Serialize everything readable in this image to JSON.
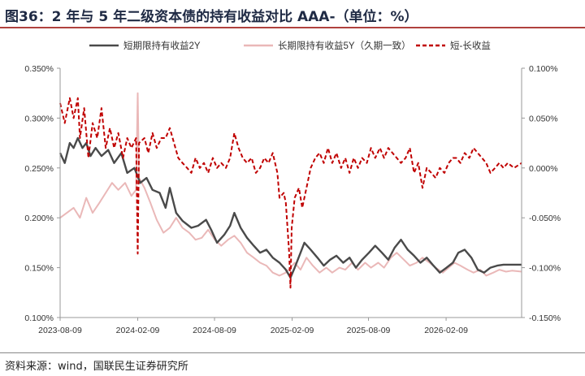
{
  "page": {
    "title": "图36：2 年与 5 年二级资本债的持有收益对比 AAA-（单位：%）",
    "source": "资料来源：wind，国联民生证券研究所"
  },
  "colors": {
    "series_2y": "#4a4a4a",
    "series_5y": "#eab8b8",
    "series_spread": "#c00000",
    "axis": "#999999",
    "title_rule": "#b0413e"
  },
  "chart_data": {
    "type": "line",
    "title": "",
    "legend_position": "top",
    "grid": false,
    "x_type": "date",
    "x_range": [
      "2023-08-09",
      "2026-08-07"
    ],
    "x_ticks": [
      "2023-08-09",
      "2024-02-09",
      "2024-08-09",
      "2025-02-09",
      "2025-08-09",
      "2026-02-09"
    ],
    "y_left": {
      "range": [
        0.1,
        0.35
      ],
      "ticks": [
        "0.100%",
        "0.150%",
        "0.200%",
        "0.250%",
        "0.300%",
        "0.350%"
      ],
      "tick_values": [
        0.1,
        0.15,
        0.2,
        0.25,
        0.3,
        0.35
      ]
    },
    "y_right": {
      "range": [
        -0.15,
        0.1
      ],
      "ticks": [
        "-0.150%",
        "-0.100%",
        "-0.050%",
        "0.000%",
        "0.050%",
        "0.100%"
      ],
      "tick_values": [
        -0.15,
        -0.1,
        -0.05,
        0.0,
        0.05,
        0.1
      ]
    },
    "series": [
      {
        "name": "短期限持有收益2Y",
        "axis": "left",
        "style": "solid",
        "points": [
          [
            "2023-08-09",
            0.265
          ],
          [
            "2023-08-20",
            0.255
          ],
          [
            "2023-09-01",
            0.275
          ],
          [
            "2023-09-10",
            0.27
          ],
          [
            "2023-09-20",
            0.28
          ],
          [
            "2023-10-01",
            0.27
          ],
          [
            "2023-10-10",
            0.275
          ],
          [
            "2023-10-20",
            0.262
          ],
          [
            "2023-11-01",
            0.27
          ],
          [
            "2023-11-15",
            0.262
          ],
          [
            "2023-12-01",
            0.268
          ],
          [
            "2023-12-15",
            0.255
          ],
          [
            "2024-01-01",
            0.265
          ],
          [
            "2024-01-15",
            0.245
          ],
          [
            "2024-02-01",
            0.25
          ],
          [
            "2024-02-15",
            0.235
          ],
          [
            "2024-03-01",
            0.24
          ],
          [
            "2024-03-15",
            0.228
          ],
          [
            "2024-04-01",
            0.225
          ],
          [
            "2024-04-15",
            0.21
          ],
          [
            "2024-04-25",
            0.23
          ],
          [
            "2024-05-10",
            0.205
          ],
          [
            "2024-05-25",
            0.197
          ],
          [
            "2024-06-15",
            0.19
          ],
          [
            "2024-07-01",
            0.192
          ],
          [
            "2024-07-20",
            0.198
          ],
          [
            "2024-08-01",
            0.188
          ],
          [
            "2024-08-15",
            0.175
          ],
          [
            "2024-09-01",
            0.183
          ],
          [
            "2024-09-15",
            0.192
          ],
          [
            "2024-09-25",
            0.205
          ],
          [
            "2024-10-10",
            0.19
          ],
          [
            "2024-10-25",
            0.18
          ],
          [
            "2024-11-10",
            0.172
          ],
          [
            "2024-11-25",
            0.165
          ],
          [
            "2024-12-10",
            0.168
          ],
          [
            "2024-12-25",
            0.16
          ],
          [
            "2025-01-10",
            0.155
          ],
          [
            "2025-01-25",
            0.148
          ],
          [
            "2025-02-05",
            0.14
          ],
          [
            "2025-02-15",
            0.15
          ],
          [
            "2025-03-01",
            0.165
          ],
          [
            "2025-03-10",
            0.175
          ],
          [
            "2025-03-25",
            0.168
          ],
          [
            "2025-04-10",
            0.16
          ],
          [
            "2025-04-25",
            0.152
          ],
          [
            "2025-05-10",
            0.158
          ],
          [
            "2025-05-25",
            0.162
          ],
          [
            "2025-06-10",
            0.155
          ],
          [
            "2025-06-25",
            0.16
          ],
          [
            "2025-07-10",
            0.15
          ],
          [
            "2025-07-25",
            0.158
          ],
          [
            "2025-08-10",
            0.165
          ],
          [
            "2025-08-25",
            0.172
          ],
          [
            "2025-09-10",
            0.165
          ],
          [
            "2025-09-25",
            0.158
          ],
          [
            "2025-10-10",
            0.17
          ],
          [
            "2025-10-25",
            0.178
          ],
          [
            "2025-11-10",
            0.168
          ],
          [
            "2025-11-25",
            0.162
          ],
          [
            "2025-12-10",
            0.155
          ],
          [
            "2025-12-25",
            0.16
          ],
          [
            "2026-01-10",
            0.152
          ],
          [
            "2026-01-25",
            0.145
          ],
          [
            "2026-02-10",
            0.15
          ],
          [
            "2026-02-25",
            0.155
          ],
          [
            "2026-03-10",
            0.165
          ],
          [
            "2026-03-25",
            0.168
          ],
          [
            "2026-04-10",
            0.16
          ],
          [
            "2026-04-25",
            0.148
          ],
          [
            "2026-05-10",
            0.145
          ],
          [
            "2026-05-25",
            0.15
          ],
          [
            "2026-06-10",
            0.152
          ],
          [
            "2026-06-25",
            0.153
          ],
          [
            "2026-07-10",
            0.153
          ],
          [
            "2026-08-07",
            0.153
          ]
        ]
      },
      {
        "name": "长期限持有收益5Y（久期一致）",
        "axis": "left",
        "style": "solid",
        "points": [
          [
            "2023-08-09",
            0.2
          ],
          [
            "2023-08-25",
            0.205
          ],
          [
            "2023-09-10",
            0.21
          ],
          [
            "2023-09-25",
            0.2
          ],
          [
            "2023-10-10",
            0.22
          ],
          [
            "2023-10-25",
            0.205
          ],
          [
            "2023-11-10",
            0.215
          ],
          [
            "2023-11-25",
            0.225
          ],
          [
            "2023-12-10",
            0.235
          ],
          [
            "2023-12-25",
            0.228
          ],
          [
            "2024-01-10",
            0.235
          ],
          [
            "2024-01-25",
            0.222
          ],
          [
            "2024-02-05",
            0.228
          ],
          [
            "2024-02-09",
            0.325
          ],
          [
            "2024-02-12",
            0.24
          ],
          [
            "2024-02-25",
            0.23
          ],
          [
            "2024-03-10",
            0.215
          ],
          [
            "2024-03-25",
            0.198
          ],
          [
            "2024-04-10",
            0.185
          ],
          [
            "2024-04-25",
            0.19
          ],
          [
            "2024-05-10",
            0.2
          ],
          [
            "2024-05-25",
            0.19
          ],
          [
            "2024-06-10",
            0.185
          ],
          [
            "2024-06-25",
            0.178
          ],
          [
            "2024-07-10",
            0.18
          ],
          [
            "2024-07-25",
            0.188
          ],
          [
            "2024-08-10",
            0.178
          ],
          [
            "2024-08-25",
            0.172
          ],
          [
            "2024-09-10",
            0.178
          ],
          [
            "2024-09-25",
            0.182
          ],
          [
            "2024-10-10",
            0.175
          ],
          [
            "2024-10-25",
            0.165
          ],
          [
            "2024-11-10",
            0.16
          ],
          [
            "2024-11-25",
            0.155
          ],
          [
            "2024-12-10",
            0.152
          ],
          [
            "2024-12-25",
            0.145
          ],
          [
            "2025-01-10",
            0.142
          ],
          [
            "2025-01-25",
            0.145
          ],
          [
            "2025-02-05",
            0.15
          ],
          [
            "2025-02-15",
            0.155
          ],
          [
            "2025-03-01",
            0.148
          ],
          [
            "2025-03-15",
            0.16
          ],
          [
            "2025-03-30",
            0.152
          ],
          [
            "2025-04-15",
            0.145
          ],
          [
            "2025-05-01",
            0.15
          ],
          [
            "2025-05-15",
            0.145
          ],
          [
            "2025-06-01",
            0.15
          ],
          [
            "2025-06-15",
            0.148
          ],
          [
            "2025-07-01",
            0.155
          ],
          [
            "2025-07-15",
            0.148
          ],
          [
            "2025-08-01",
            0.155
          ],
          [
            "2025-08-15",
            0.15
          ],
          [
            "2025-09-01",
            0.155
          ],
          [
            "2025-09-15",
            0.15
          ],
          [
            "2025-10-01",
            0.16
          ],
          [
            "2025-10-15",
            0.165
          ],
          [
            "2025-11-01",
            0.158
          ],
          [
            "2025-11-15",
            0.152
          ],
          [
            "2025-12-01",
            0.155
          ],
          [
            "2025-12-15",
            0.16
          ],
          [
            "2026-01-01",
            0.155
          ],
          [
            "2026-01-15",
            0.15
          ],
          [
            "2026-02-01",
            0.145
          ],
          [
            "2026-02-15",
            0.15
          ],
          [
            "2026-03-01",
            0.155
          ],
          [
            "2026-03-15",
            0.152
          ],
          [
            "2026-04-01",
            0.148
          ],
          [
            "2026-04-15",
            0.145
          ],
          [
            "2026-05-01",
            0.148
          ],
          [
            "2026-05-15",
            0.142
          ],
          [
            "2026-06-01",
            0.145
          ],
          [
            "2026-06-15",
            0.148
          ],
          [
            "2026-07-01",
            0.146
          ],
          [
            "2026-07-15",
            0.147
          ],
          [
            "2026-08-07",
            0.146
          ]
        ]
      },
      {
        "name": "短-长收益",
        "axis": "right",
        "style": "dashed",
        "points": [
          [
            "2023-08-09",
            0.065
          ],
          [
            "2023-08-20",
            0.045
          ],
          [
            "2023-09-01",
            0.07
          ],
          [
            "2023-09-10",
            0.05
          ],
          [
            "2023-09-20",
            0.07
          ],
          [
            "2023-09-25",
            0.03
          ],
          [
            "2023-10-05",
            0.06
          ],
          [
            "2023-10-15",
            0.01
          ],
          [
            "2023-10-25",
            0.045
          ],
          [
            "2023-11-05",
            0.03
          ],
          [
            "2023-11-15",
            0.06
          ],
          [
            "2023-11-25",
            0.02
          ],
          [
            "2023-12-05",
            0.04
          ],
          [
            "2023-12-15",
            0.02
          ],
          [
            "2023-12-25",
            0.035
          ],
          [
            "2024-01-05",
            0.01
          ],
          [
            "2024-01-15",
            0.03
          ],
          [
            "2024-01-25",
            0.02
          ],
          [
            "2024-02-05",
            0.03
          ],
          [
            "2024-02-09",
            -0.086
          ],
          [
            "2024-02-12",
            0.025
          ],
          [
            "2024-02-25",
            0.03
          ],
          [
            "2024-03-05",
            0.015
          ],
          [
            "2024-03-15",
            0.035
          ],
          [
            "2024-03-25",
            0.02
          ],
          [
            "2024-04-05",
            0.03
          ],
          [
            "2024-04-15",
            0.03
          ],
          [
            "2024-04-25",
            0.04
          ],
          [
            "2024-05-05",
            0.025
          ],
          [
            "2024-05-15",
            0.01
          ],
          [
            "2024-05-25",
            0.005
          ],
          [
            "2024-06-05",
            0.0
          ],
          [
            "2024-06-15",
            -0.005
          ],
          [
            "2024-06-25",
            0.01
          ],
          [
            "2024-07-05",
            0.0
          ],
          [
            "2024-07-15",
            0.005
          ],
          [
            "2024-07-25",
            -0.005
          ],
          [
            "2024-08-05",
            0.01
          ],
          [
            "2024-08-15",
            0.0
          ],
          [
            "2024-08-25",
            0.005
          ],
          [
            "2024-09-05",
            0.0
          ],
          [
            "2024-09-15",
            0.01
          ],
          [
            "2024-09-25",
            0.035
          ],
          [
            "2024-10-05",
            0.02
          ],
          [
            "2024-10-15",
            0.01
          ],
          [
            "2024-10-25",
            0.005
          ],
          [
            "2024-11-05",
            0.01
          ],
          [
            "2024-11-15",
            -0.005
          ],
          [
            "2024-11-25",
            0.0
          ],
          [
            "2024-12-05",
            0.01
          ],
          [
            "2024-12-15",
            0.005
          ],
          [
            "2024-12-25",
            0.015
          ],
          [
            "2025-01-05",
            -0.005
          ],
          [
            "2025-01-10",
            -0.03
          ],
          [
            "2025-01-20",
            -0.025
          ],
          [
            "2025-01-25",
            -0.035
          ],
          [
            "2025-02-02",
            -0.085
          ],
          [
            "2025-02-05",
            -0.12
          ],
          [
            "2025-02-08",
            -0.06
          ],
          [
            "2025-02-15",
            -0.03
          ],
          [
            "2025-02-25",
            -0.02
          ],
          [
            "2025-03-05",
            -0.04
          ],
          [
            "2025-03-15",
            -0.02
          ],
          [
            "2025-03-25",
            0.0
          ],
          [
            "2025-04-05",
            0.01
          ],
          [
            "2025-04-15",
            0.015
          ],
          [
            "2025-04-25",
            0.005
          ],
          [
            "2025-05-05",
            0.02
          ],
          [
            "2025-05-15",
            0.005
          ],
          [
            "2025-05-25",
            0.015
          ],
          [
            "2025-06-05",
            0.0
          ],
          [
            "2025-06-15",
            0.01
          ],
          [
            "2025-06-25",
            -0.005
          ],
          [
            "2025-07-05",
            0.01
          ],
          [
            "2025-07-15",
            0.0
          ],
          [
            "2025-07-25",
            0.01
          ],
          [
            "2025-08-05",
            0.005
          ],
          [
            "2025-08-15",
            0.02
          ],
          [
            "2025-08-25",
            0.01
          ],
          [
            "2025-09-05",
            0.02
          ],
          [
            "2025-09-15",
            0.01
          ],
          [
            "2025-09-25",
            0.02
          ],
          [
            "2025-10-05",
            0.015
          ],
          [
            "2025-10-15",
            0.01
          ],
          [
            "2025-10-25",
            0.005
          ],
          [
            "2025-11-05",
            0.01
          ],
          [
            "2025-11-15",
            0.02
          ],
          [
            "2025-11-25",
            -0.005
          ],
          [
            "2025-12-05",
            0.005
          ],
          [
            "2025-12-15",
            -0.02
          ],
          [
            "2025-12-25",
            0.0
          ],
          [
            "2026-01-05",
            -0.005
          ],
          [
            "2026-01-15",
            -0.01
          ],
          [
            "2026-01-25",
            0.0
          ],
          [
            "2026-02-05",
            -0.005
          ],
          [
            "2026-02-15",
            0.005
          ],
          [
            "2026-02-25",
            0.01
          ],
          [
            "2026-03-05",
            0.01
          ],
          [
            "2026-03-15",
            0.005
          ],
          [
            "2026-03-25",
            0.015
          ],
          [
            "2026-04-05",
            0.01
          ],
          [
            "2026-04-15",
            0.02
          ],
          [
            "2026-04-25",
            0.015
          ],
          [
            "2026-05-05",
            0.01
          ],
          [
            "2026-05-15",
            0.005
          ],
          [
            "2026-05-25",
            -0.005
          ],
          [
            "2026-06-05",
            0.0
          ],
          [
            "2026-06-15",
            0.005
          ],
          [
            "2026-06-25",
            0.0
          ],
          [
            "2026-07-05",
            0.005
          ],
          [
            "2026-07-20",
            0.0
          ],
          [
            "2026-08-07",
            0.005
          ]
        ]
      }
    ]
  }
}
